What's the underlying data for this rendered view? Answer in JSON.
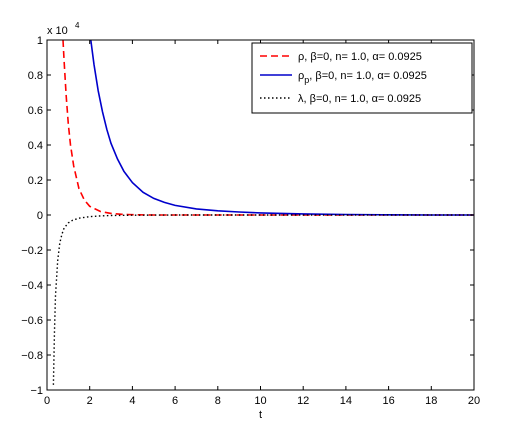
{
  "chart_data": {
    "type": "line",
    "title": "",
    "xlabel": "t",
    "ylabel": "",
    "y_scale_note": "x 10",
    "y_scale_exponent": "4",
    "xlim": [
      0,
      20
    ],
    "ylim": [
      -1,
      1
    ],
    "x_ticks": [
      "0",
      "2",
      "4",
      "6",
      "8",
      "10",
      "12",
      "14",
      "16",
      "18",
      "20"
    ],
    "y_ticks": [
      "1",
      "0.8",
      "0.6",
      "0.4",
      "0.2",
      "0",
      "−0.2",
      "−0.4",
      "−0.6",
      "−0.8",
      "−1"
    ],
    "grid": false,
    "legend_position": "top-right",
    "series": [
      {
        "name": "ρ, β=0, n= 1.0, α= 0.0925",
        "name_main": "ρ,  β=0, n= 1.0, α= 0.0925",
        "color": "#ff0000",
        "style": "dashed",
        "x": [
          0.75,
          0.8,
          0.9,
          1.0,
          1.1,
          1.25,
          1.5,
          1.75,
          2.0,
          2.5,
          3.0,
          3.5,
          4.0,
          5.0,
          6.0,
          8.0,
          10.0,
          14.0,
          20.0
        ],
        "y": [
          1.0,
          0.88,
          0.68,
          0.52,
          0.4,
          0.28,
          0.15,
          0.085,
          0.05,
          0.02,
          0.009,
          0.004,
          0.002,
          0.0,
          0.0,
          0.0,
          0.0,
          0.0,
          0.0
        ]
      },
      {
        "name": "ρp, β=0, n= 1.0, α= 0.0925",
        "name_main": "ρ",
        "name_sub": "p",
        "name_rest": ", β=0, n= 1.0, α= 0.0925",
        "color": "#0000cc",
        "style": "solid",
        "x": [
          2.05,
          2.2,
          2.4,
          2.6,
          2.8,
          3.0,
          3.3,
          3.6,
          4.0,
          4.5,
          5.0,
          5.5,
          6.0,
          7.0,
          8.0,
          9.0,
          10.0,
          12.0,
          14.0,
          16.0,
          18.0,
          20.0
        ],
        "y": [
          1.0,
          0.86,
          0.71,
          0.59,
          0.49,
          0.41,
          0.32,
          0.25,
          0.185,
          0.13,
          0.095,
          0.072,
          0.055,
          0.035,
          0.024,
          0.017,
          0.012,
          0.006,
          0.003,
          0.001,
          0.0,
          0.0
        ]
      },
      {
        "name": "λ, β=0, n= 1.0, α= 0.0925",
        "name_main": "λ,  β=0, n= 1.0, α= 0.0925",
        "color": "#000000",
        "style": "dotted",
        "x": [
          0.3,
          0.35,
          0.4,
          0.5,
          0.6,
          0.7,
          0.8,
          1.0,
          1.2,
          1.5,
          2.0,
          2.5,
          3.0,
          4.0,
          6.0,
          10.0,
          14.0,
          20.0
        ],
        "y": [
          -0.97,
          -0.66,
          -0.46,
          -0.26,
          -0.16,
          -0.11,
          -0.075,
          -0.045,
          -0.03,
          -0.018,
          -0.009,
          -0.005,
          -0.003,
          -0.001,
          0.0,
          0.0,
          0.0,
          0.0
        ]
      }
    ]
  }
}
